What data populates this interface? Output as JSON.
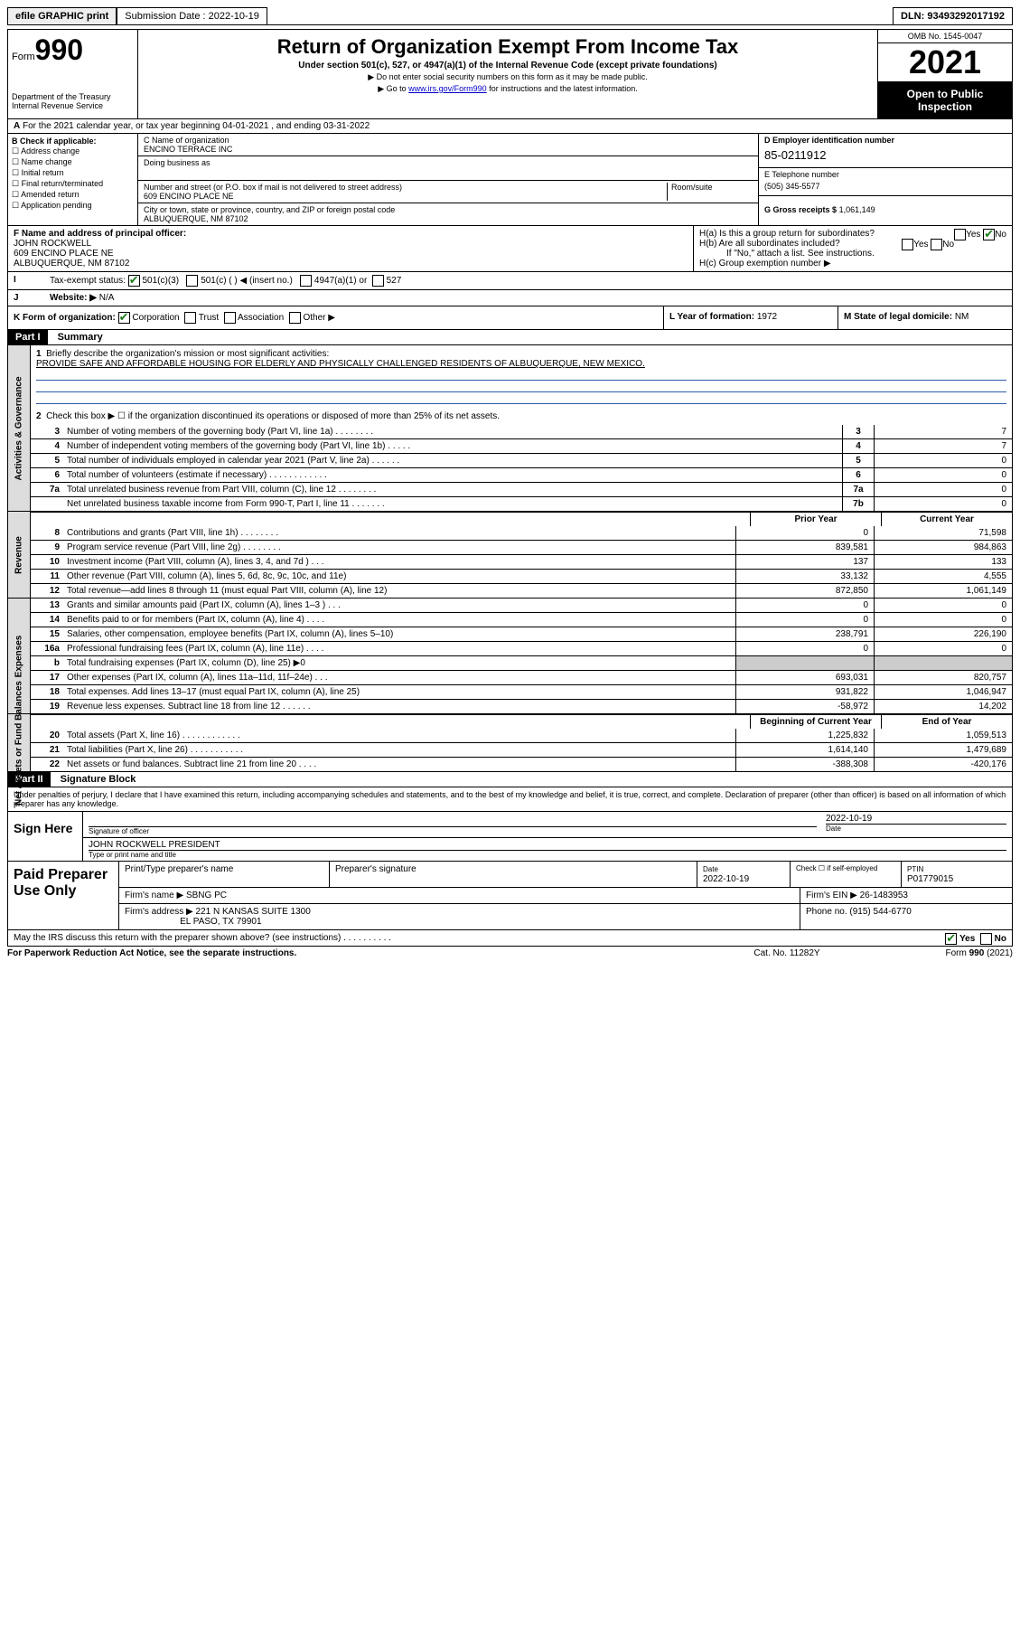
{
  "topbar": {
    "efile": "efile GRAPHIC print",
    "sub_label": "Submission Date : 2022-10-19",
    "dln": "DLN: 93493292017192"
  },
  "header": {
    "form_word": "Form",
    "form_num": "990",
    "dept": "Department of the Treasury",
    "irs": "Internal Revenue Service",
    "title": "Return of Organization Exempt From Income Tax",
    "sub": "Under section 501(c), 527, or 4947(a)(1) of the Internal Revenue Code (except private foundations)",
    "note1": "▶ Do not enter social security numbers on this form as it may be made public.",
    "note2_pre": "▶ Go to ",
    "note2_link": "www.irs.gov/Form990",
    "note2_post": " for instructions and the latest information.",
    "omb": "OMB No. 1545-0047",
    "year": "2021",
    "open": "Open to Public Inspection"
  },
  "A": "For the 2021 calendar year, or tax year beginning 04-01-2021  , and ending 03-31-2022",
  "B": {
    "hdr": "B Check if applicable:",
    "items": [
      "Address change",
      "Name change",
      "Initial return",
      "Final return/terminated",
      "Amended return",
      "Application pending"
    ]
  },
  "C": {
    "name_lbl": "C Name of organization",
    "name": "ENCINO TERRACE INC",
    "dba_lbl": "Doing business as",
    "street_lbl": "Number and street (or P.O. box if mail is not delivered to street address)",
    "room_lbl": "Room/suite",
    "street": "609 ENCINO PLACE NE",
    "city_lbl": "City or town, state or province, country, and ZIP or foreign postal code",
    "city": "ALBUQUERQUE, NM  87102"
  },
  "D": {
    "lbl": "D Employer identification number",
    "val": "85-0211912"
  },
  "E": {
    "lbl": "E Telephone number",
    "val": "(505) 345-5577"
  },
  "G": {
    "lbl": "G Gross receipts $",
    "val": "1,061,149"
  },
  "F": {
    "lbl": "F  Name and address of principal officer:",
    "name": "JOHN ROCKWELL",
    "addr1": "609 ENCINO PLACE NE",
    "addr2": "ALBUQUERQUE, NM  87102"
  },
  "H": {
    "a": "H(a)  Is this a group return for subordinates?",
    "b": "H(b)  Are all subordinates included?",
    "b_note": "If \"No,\" attach a list. See instructions.",
    "c": "H(c)  Group exemption number ▶",
    "yes": "Yes",
    "no": "No"
  },
  "I": {
    "lbl": "Tax-exempt status:",
    "opts": [
      "501(c)(3)",
      "501(c) (  ) ◀ (insert no.)",
      "4947(a)(1) or",
      "527"
    ]
  },
  "J": {
    "lbl": "Website: ▶",
    "val": "N/A"
  },
  "K": {
    "lbl": "K Form of organization:",
    "opts": [
      "Corporation",
      "Trust",
      "Association",
      "Other ▶"
    ]
  },
  "L": {
    "lbl": "L Year of formation:",
    "val": "1972"
  },
  "M": {
    "lbl": "M State of legal domicile:",
    "val": "NM"
  },
  "part1": {
    "hdr": "Part I",
    "title": "Summary"
  },
  "mission": {
    "lbl": "Briefly describe the organization's mission or most significant activities:",
    "text": "PROVIDE SAFE AND AFFORDABLE HOUSING FOR ELDERLY AND PHYSICALLY CHALLENGED RESIDENTS OF ALBUQUERQUE, NEW MEXICO."
  },
  "line2": "Check this box ▶ ☐  if the organization discontinued its operations or disposed of more than 25% of its net assets.",
  "gov_lines": [
    {
      "n": "3",
      "lbl": "Number of voting members of the governing body (Part VI, line 1a)   .    .    .    .    .    .    .    .",
      "box": "3",
      "val": "7"
    },
    {
      "n": "4",
      "lbl": "Number of independent voting members of the governing body (Part VI, line 1b)  .    .    .    .    .",
      "box": "4",
      "val": "7"
    },
    {
      "n": "5",
      "lbl": "Total number of individuals employed in calendar year 2021 (Part V, line 2a)  .    .    .    .    .    .",
      "box": "5",
      "val": "0"
    },
    {
      "n": "6",
      "lbl": "Total number of volunteers (estimate if necessary)  .    .    .    .    .    .    .    .    .    .    .    .",
      "box": "6",
      "val": "0"
    },
    {
      "n": "7a",
      "lbl": "Total unrelated business revenue from Part VIII, column (C), line 12  .    .    .    .    .    .    .    .",
      "box": "7a",
      "val": "0"
    },
    {
      "n": "",
      "lbl": "Net unrelated business taxable income from Form 990-T, Part I, line 11  .    .    .    .    .    .    .",
      "box": "7b",
      "val": "0"
    }
  ],
  "col_hdr": {
    "prior": "Prior Year",
    "current": "Current Year"
  },
  "rev_lines": [
    {
      "n": "8",
      "lbl": "Contributions and grants (Part VIII, line 1h)  .    .    .    .    .    .    .    .",
      "p": "0",
      "c": "71,598"
    },
    {
      "n": "9",
      "lbl": "Program service revenue (Part VIII, line 2g)  .    .    .    .    .    .    .    .",
      "p": "839,581",
      "c": "984,863"
    },
    {
      "n": "10",
      "lbl": "Investment income (Part VIII, column (A), lines 3, 4, and 7d )   .    .    .",
      "p": "137",
      "c": "133"
    },
    {
      "n": "11",
      "lbl": "Other revenue (Part VIII, column (A), lines 5, 6d, 8c, 9c, 10c, and 11e)",
      "p": "33,132",
      "c": "4,555"
    },
    {
      "n": "12",
      "lbl": "Total revenue—add lines 8 through 11 (must equal Part VIII, column (A), line 12)",
      "p": "872,850",
      "c": "1,061,149"
    }
  ],
  "exp_lines": [
    {
      "n": "13",
      "lbl": "Grants and similar amounts paid (Part IX, column (A), lines 1–3 )  .    .    .",
      "p": "0",
      "c": "0"
    },
    {
      "n": "14",
      "lbl": "Benefits paid to or for members (Part IX, column (A), line 4)  .    .    .    .",
      "p": "0",
      "c": "0"
    },
    {
      "n": "15",
      "lbl": "Salaries, other compensation, employee benefits (Part IX, column (A), lines 5–10)",
      "p": "238,791",
      "c": "226,190"
    },
    {
      "n": "16a",
      "lbl": "Professional fundraising fees (Part IX, column (A), line 11e)  .    .    .    .",
      "p": "0",
      "c": "0"
    },
    {
      "n": "b",
      "lbl": "Total fundraising expenses (Part IX, column (D), line 25) ▶0",
      "p": "",
      "c": ""
    },
    {
      "n": "17",
      "lbl": "Other expenses (Part IX, column (A), lines 11a–11d, 11f–24e)  .    .    .",
      "p": "693,031",
      "c": "820,757"
    },
    {
      "n": "18",
      "lbl": "Total expenses. Add lines 13–17 (must equal Part IX, column (A), line 25)",
      "p": "931,822",
      "c": "1,046,947"
    },
    {
      "n": "19",
      "lbl": "Revenue less expenses. Subtract line 18 from line 12 .    .    .    .    .    .",
      "p": "-58,972",
      "c": "14,202"
    }
  ],
  "na_hdr": {
    "begin": "Beginning of Current Year",
    "end": "End of Year"
  },
  "na_lines": [
    {
      "n": "20",
      "lbl": "Total assets (Part X, line 16)  .    .    .    .    .    .    .    .    .    .    .    .",
      "p": "1,225,832",
      "c": "1,059,513"
    },
    {
      "n": "21",
      "lbl": "Total liabilities (Part X, line 26)  .    .    .    .    .    .    .    .    .    .    .",
      "p": "1,614,140",
      "c": "1,479,689"
    },
    {
      "n": "22",
      "lbl": "Net assets or fund balances. Subtract line 21 from line 20 .    .    .    .",
      "p": "-388,308",
      "c": "-420,176"
    }
  ],
  "part2": {
    "hdr": "Part II",
    "title": "Signature Block"
  },
  "penalty": "Under penalties of perjury, I declare that I have examined this return, including accompanying schedules and statements, and to the best of my knowledge and belief, it is true, correct, and complete. Declaration of preparer (other than officer) is based on all information of which preparer has any knowledge.",
  "sign": {
    "here": "Sign Here",
    "sig_lbl": "Signature of officer",
    "date": "2022-10-19",
    "date_lbl": "Date",
    "name": "JOHN ROCKWELL PRESIDENT",
    "name_lbl": "Type or print name and title"
  },
  "paid": {
    "hdr": "Paid Preparer Use Only",
    "c1": "Print/Type preparer's name",
    "c2": "Preparer's signature",
    "c3": "Date",
    "c3v": "2022-10-19",
    "c4a": "Check ☐ if self-employed",
    "c5": "PTIN",
    "c5v": "P01779015",
    "firm_lbl": "Firm's name    ▶",
    "firm": "SBNG PC",
    "ein_lbl": "Firm's EIN ▶",
    "ein": "26-1483953",
    "addr_lbl": "Firm's address ▶",
    "addr1": "221 N KANSAS SUITE 1300",
    "addr2": "EL PASO, TX  79901",
    "phone_lbl": "Phone no.",
    "phone": "(915) 544-6770"
  },
  "may": "May the IRS discuss this return with the preparer shown above? (see instructions)  .    .    .    .    .    .    .    .    .    .",
  "footer": {
    "pra": "For Paperwork Reduction Act Notice, see the separate instructions.",
    "cat": "Cat. No. 11282Y",
    "form": "Form 990 (2021)"
  },
  "tabs": {
    "gov": "Activities & Governance",
    "rev": "Revenue",
    "exp": "Expenses",
    "na": "Net Assets or Fund Balances"
  }
}
